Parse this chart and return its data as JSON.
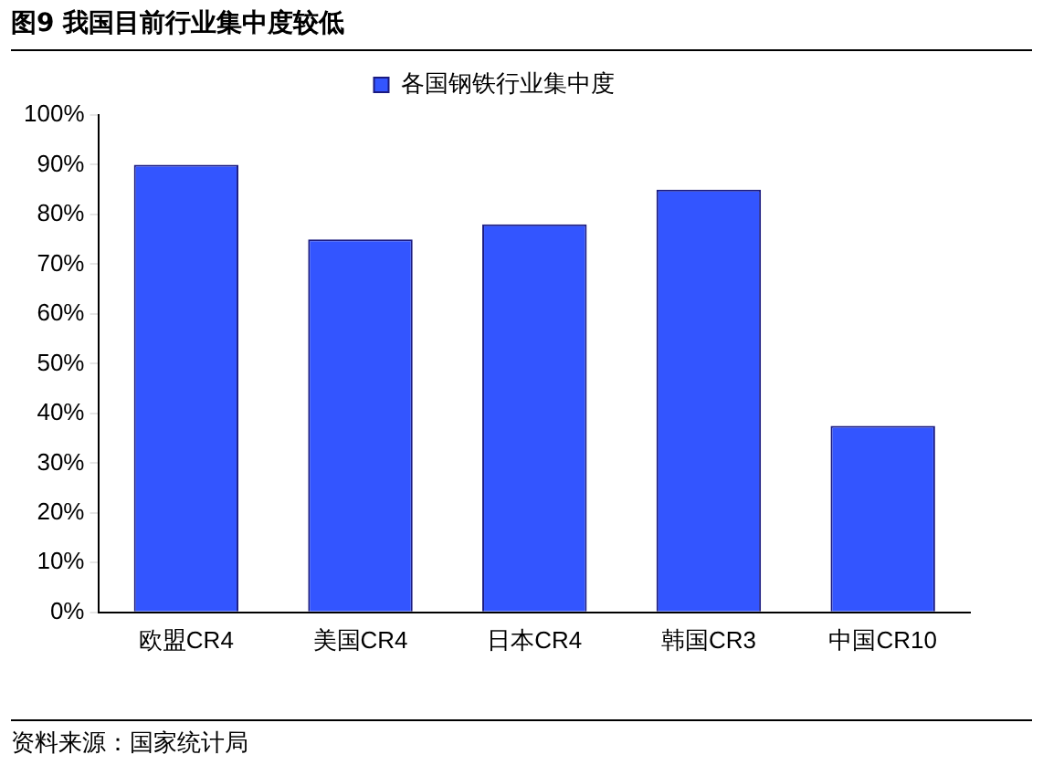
{
  "chart_data": {
    "type": "bar",
    "title": "图9 我国目前行业集中度较低",
    "categories": [
      "欧盟CR4",
      "美国CR4",
      "日本CR4",
      "韩国CR3",
      "中国CR10"
    ],
    "series": [
      {
        "name": "各国钢铁行业集中度",
        "color": "#3355ff",
        "values": [
          90,
          75,
          78,
          85,
          37.5
        ]
      }
    ],
    "ylim": [
      0,
      100
    ],
    "yticks": [
      {
        "value": 0,
        "label": "0%"
      },
      {
        "value": 10,
        "label": "10%"
      },
      {
        "value": 20,
        "label": "20%"
      },
      {
        "value": 30,
        "label": "30%"
      },
      {
        "value": 40,
        "label": "40%"
      },
      {
        "value": 50,
        "label": "50%"
      },
      {
        "value": 60,
        "label": "60%"
      },
      {
        "value": 70,
        "label": "70%"
      },
      {
        "value": 80,
        "label": "80%"
      },
      {
        "value": 90,
        "label": "90%"
      },
      {
        "value": 100,
        "label": "100%"
      }
    ],
    "grid": false,
    "legend": "top",
    "annotations": [
      "资料来源：国家统计局"
    ]
  }
}
